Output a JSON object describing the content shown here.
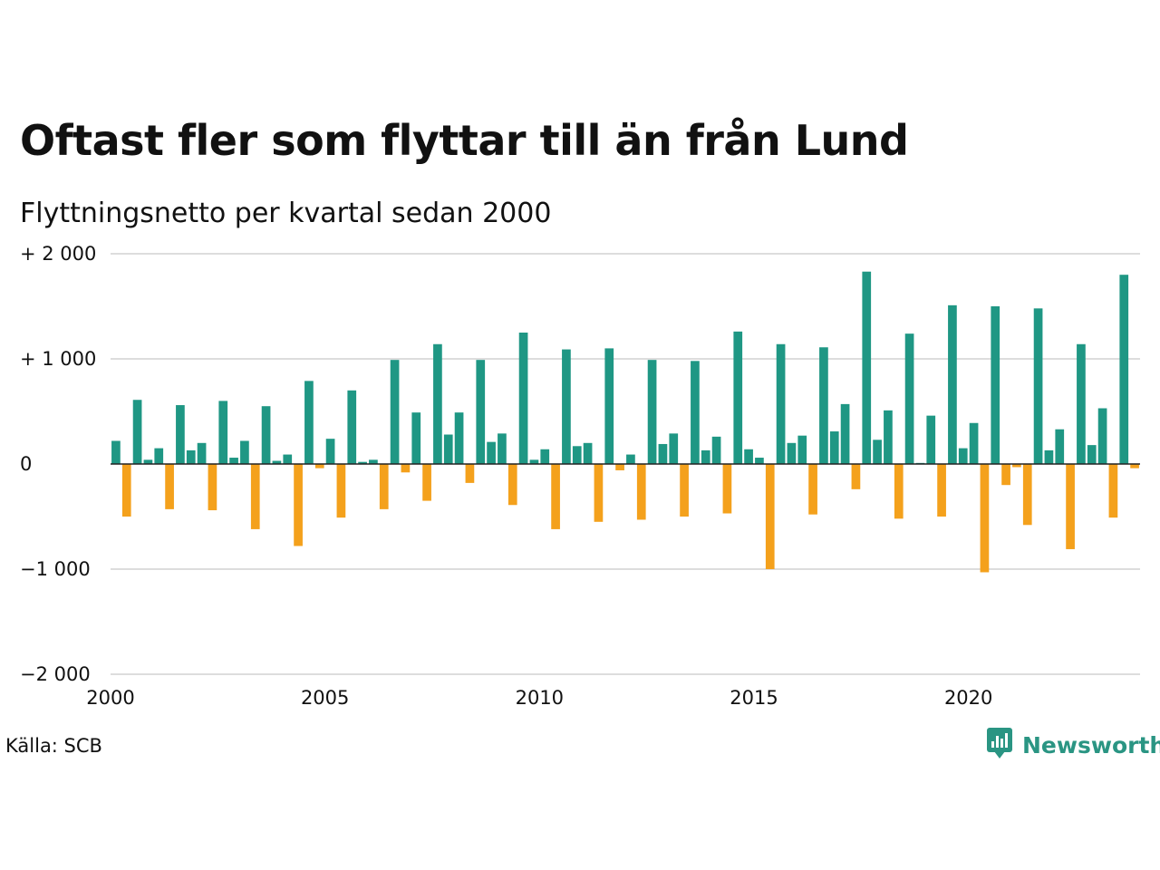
{
  "header": {
    "title": "Oftast fler som flyttar till än från Lund",
    "subtitle": "Flyttningsnetto per kvartal sedan 2000"
  },
  "footer": {
    "source": "Källa: SCB",
    "brand": "Newsworthy",
    "brand_icon": "bar-chart-speech-bubble-icon"
  },
  "colors": {
    "positive": "#1f9784",
    "negative": "#f4a11c",
    "grid": "#dddddd",
    "brand": "#2a9583"
  },
  "chart_data": {
    "type": "bar",
    "title": "Oftast fler som flyttar till än från Lund",
    "subtitle": "Flyttningsnetto per kvartal sedan 2000",
    "xlabel": "",
    "ylabel": "",
    "ylim": [
      -2000,
      2000
    ],
    "yticks": [
      2000,
      1000,
      0,
      -1000,
      -2000
    ],
    "ytick_labels": [
      "+ 2 000",
      "+ 1 000",
      "0",
      "−1 000",
      "−2 000"
    ],
    "xticks": [
      2000,
      2005,
      2010,
      2015,
      2020
    ],
    "xtick_labels": [
      "2000",
      "2005",
      "2010",
      "2015",
      "2020"
    ],
    "grid": true,
    "legend": "none",
    "x_start": 2000,
    "periods_per_year": 4,
    "values": [
      220,
      -500,
      610,
      40,
      150,
      -430,
      560,
      130,
      200,
      -440,
      600,
      60,
      220,
      -620,
      550,
      30,
      90,
      -780,
      790,
      -40,
      240,
      -510,
      700,
      20,
      40,
      -430,
      990,
      -80,
      490,
      -350,
      1140,
      280,
      490,
      -180,
      990,
      210,
      290,
      -390,
      1250,
      40,
      140,
      -620,
      1090,
      170,
      200,
      -550,
      1100,
      -60,
      90,
      -530,
      990,
      190,
      290,
      -500,
      980,
      130,
      260,
      -470,
      1260,
      140,
      60,
      -1000,
      1140,
      200,
      270,
      -480,
      1110,
      310,
      570,
      -240,
      1830,
      230,
      510,
      -520,
      1240,
      10,
      460,
      -500,
      1510,
      150,
      390,
      -1030,
      1500,
      -200,
      -30,
      -580,
      1480,
      130,
      330,
      -810,
      1140,
      180,
      530,
      -510,
      1800,
      -40
    ]
  }
}
